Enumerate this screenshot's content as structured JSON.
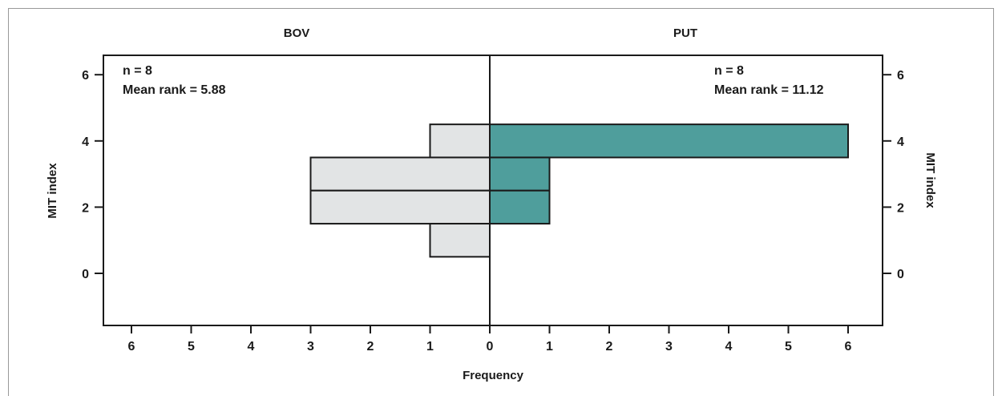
{
  "colors": {
    "put_fill": "#4f9e9c",
    "bov_fill": "#e2e4e5",
    "stroke": "#1a1a1a"
  },
  "chart_data": {
    "type": "bar",
    "orientation": "horizontal back-to-back histogram",
    "panels": [
      {
        "label": "BOV",
        "side": "left",
        "n_label": "n = 8",
        "mean_rank_label": "Mean rank = 5.88",
        "bins": [
          {
            "mit_index": 4,
            "frequency": 1
          },
          {
            "mit_index": 3,
            "frequency": 3
          },
          {
            "mit_index": 2,
            "frequency": 3
          },
          {
            "mit_index": 1,
            "frequency": 1
          }
        ]
      },
      {
        "label": "PUT",
        "side": "right",
        "n_label": "n = 8",
        "mean_rank_label": "Mean rank = 11.12",
        "bins": [
          {
            "mit_index": 4,
            "frequency": 6
          },
          {
            "mit_index": 3,
            "frequency": 1
          },
          {
            "mit_index": 2,
            "frequency": 1
          }
        ]
      }
    ],
    "xlabel": "Frequency",
    "ylabel": "MIT index",
    "x_ticks_left": [
      6,
      5,
      4,
      3,
      2,
      1,
      0
    ],
    "x_ticks_right": [
      1,
      2,
      3,
      4,
      5,
      6
    ],
    "y_ticks": [
      6,
      4,
      2,
      0
    ],
    "xlim": [
      0,
      6.5
    ],
    "ylim": [
      -1.6,
      6.6
    ],
    "grid": false
  }
}
